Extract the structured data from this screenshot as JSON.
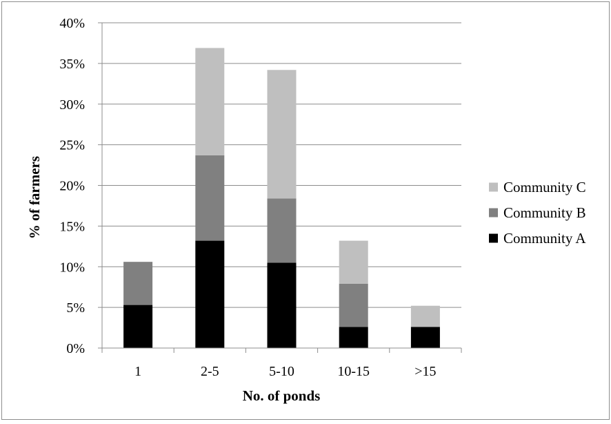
{
  "chart_data": {
    "type": "bar",
    "stacked": true,
    "title": "",
    "xlabel": "No. of ponds",
    "ylabel": "% of farmers",
    "categories": [
      "1",
      "2-5",
      "5-10",
      "10-15",
      ">15"
    ],
    "ylim": [
      0,
      40
    ],
    "yticks": [
      0,
      5,
      10,
      15,
      20,
      25,
      30,
      35,
      40
    ],
    "ytick_labels": [
      "0%",
      "5%",
      "10%",
      "15%",
      "20%",
      "25%",
      "30%",
      "35%",
      "40%"
    ],
    "grid": true,
    "legend_position": "right",
    "series": [
      {
        "name": "Community A",
        "color": "#000000",
        "values": [
          5.3,
          13.2,
          10.5,
          2.6,
          2.6
        ]
      },
      {
        "name": "Community B",
        "color": "#808080",
        "values": [
          5.3,
          10.5,
          7.9,
          5.3,
          0
        ]
      },
      {
        "name": "Community C",
        "color": "#bfbfbf",
        "values": [
          0,
          13.2,
          15.8,
          5.3,
          2.6
        ]
      }
    ]
  }
}
